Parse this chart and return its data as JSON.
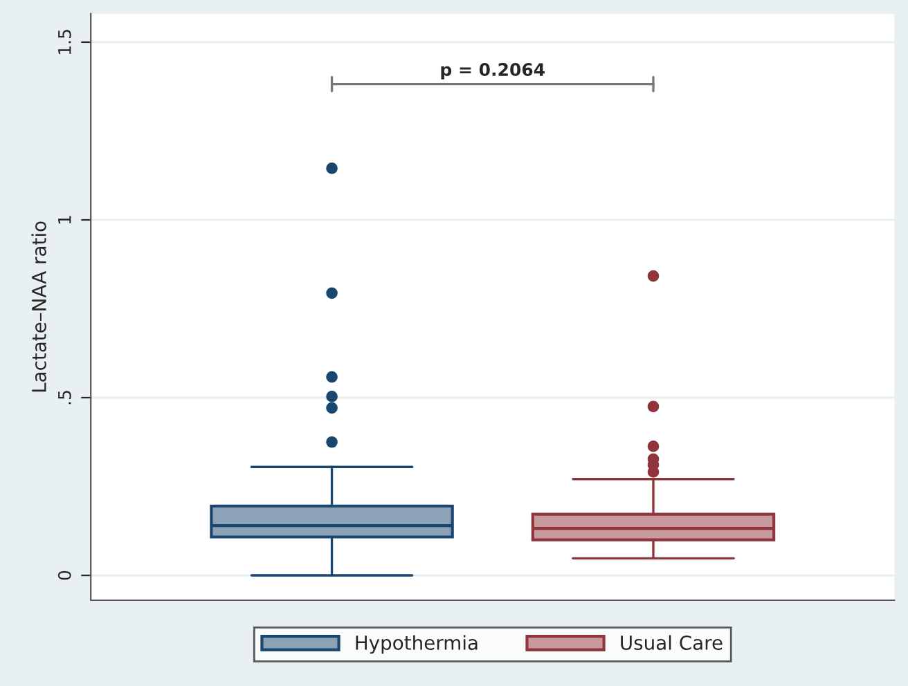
{
  "chart_data": {
    "type": "box",
    "ylabel": "Lactate–NAA ratio",
    "categories": [
      null
    ],
    "series": [
      {
        "name": "Hypothermia",
        "color": "#1a476f",
        "boxes": [
          {
            "low": 0,
            "q1": 0.108,
            "median": 0.14,
            "q3": 0.195,
            "high": 0.305,
            "outliers": [
              1.145,
              0.794,
              0.558,
              0.503,
              0.471,
              0.375
            ]
          }
        ]
      },
      {
        "name": "Usual Care",
        "color": "#90353b",
        "boxes": [
          {
            "low": 0.048,
            "q1": 0.1,
            "median": 0.132,
            "q3": 0.172,
            "high": 0.271,
            "outliers": [
              0.842,
              0.475,
              0.363,
              0.327,
              0.311,
              0.291
            ]
          }
        ]
      }
    ],
    "ylim": [
      -0.07,
      1.58
    ],
    "yticks": [
      {
        "value": 0,
        "label": "0"
      },
      {
        "value": 0.5,
        "label": ".5"
      },
      {
        "value": 1,
        "label": "1"
      },
      {
        "value": 1.5,
        "label": "1.5"
      }
    ],
    "grid": "y",
    "legend": "bottom",
    "annotations": [
      "p = 0.2064"
    ]
  }
}
